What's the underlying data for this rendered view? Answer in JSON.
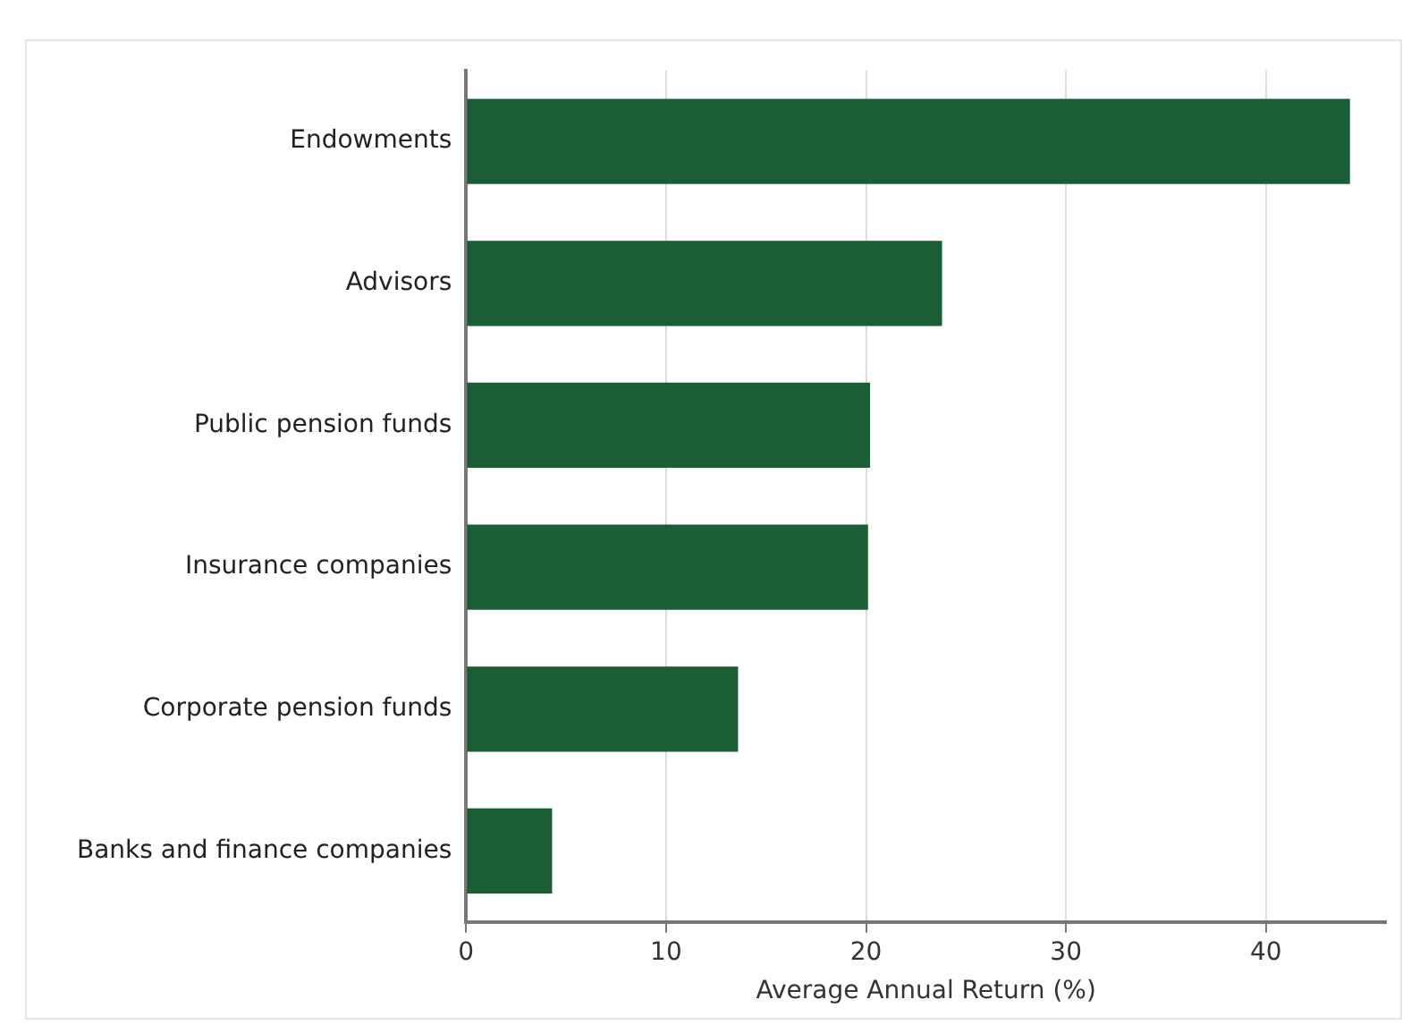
{
  "chart_data": {
    "type": "bar",
    "orientation": "horizontal",
    "xlabel": "Average Annual Return (%)",
    "categories": [
      "Endowments",
      "Advisors",
      "Public pension funds",
      "Insurance companies",
      "Corporate pension funds",
      "Banks and finance companies"
    ],
    "values": [
      44.2,
      23.8,
      20.2,
      20.1,
      13.6,
      4.3
    ],
    "color": "#1b5e35",
    "xlim": [
      0,
      46
    ],
    "xticks": [
      0,
      10,
      20,
      30,
      40
    ],
    "grid": "x"
  }
}
